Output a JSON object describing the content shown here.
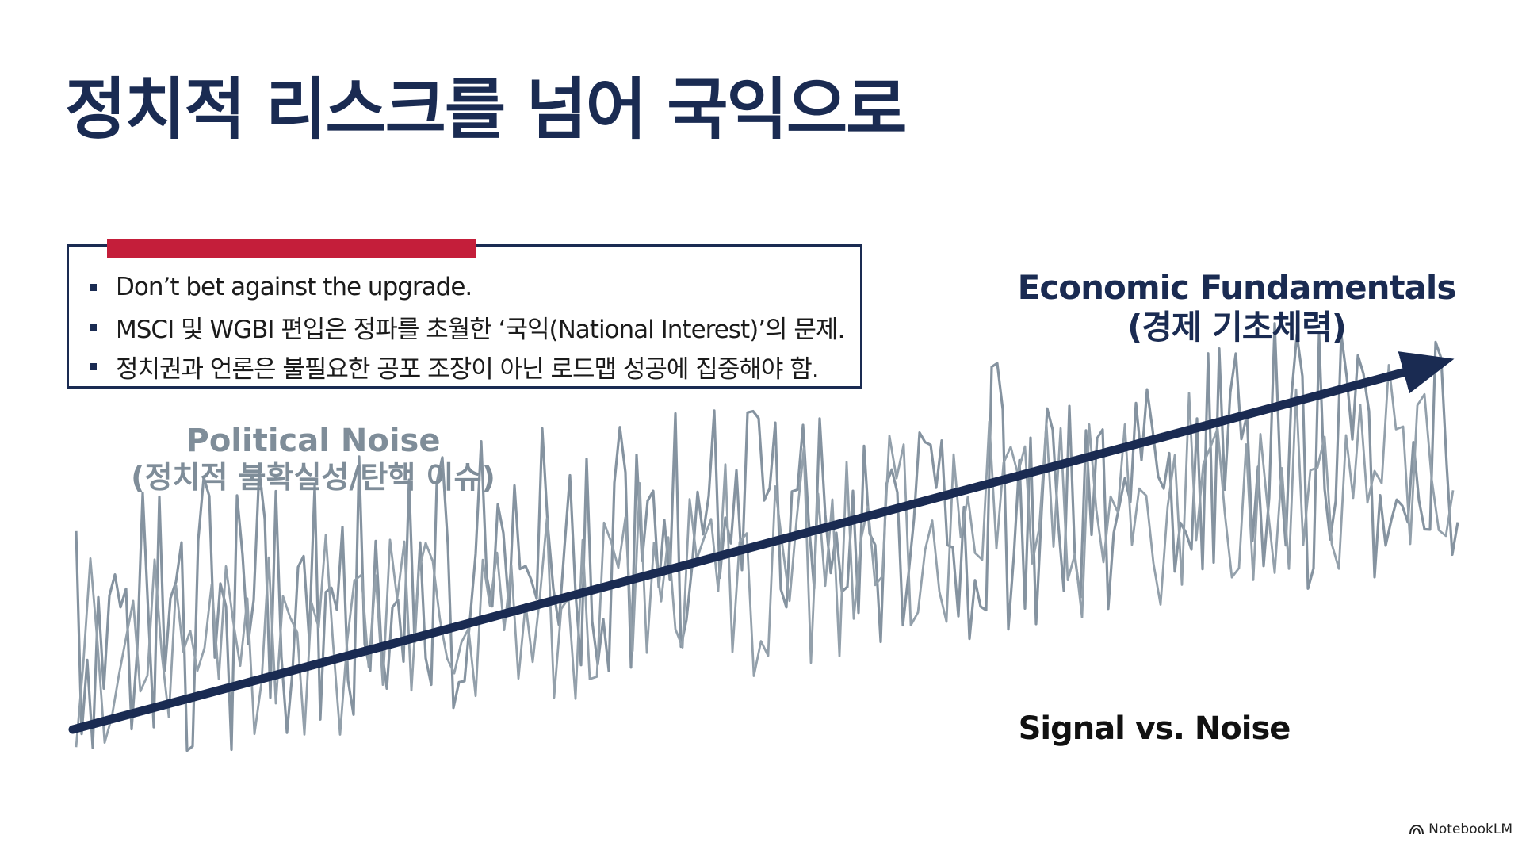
{
  "title": "정치적 리스크를 넘어 국익으로",
  "callout": {
    "bullets": [
      "Don’t bet against the upgrade.",
      "MSCI 및 WGBI 편입은 정파를 초월한 ‘국익(National Interest)’의 문제.",
      "정치권과 언론은 불필요한 공포 조장이 아닌 로드맵 성공에 집중해야 함."
    ]
  },
  "diagram": {
    "noise_label": "Political Noise",
    "noise_sublabel": "(정치적 불확실성/탄핵 이슈)",
    "fundamentals_label": "Economic Fundamentals",
    "fundamentals_sublabel": "(경제 기초체력)",
    "signal_label": "Signal vs. Noise"
  },
  "brand": "NotebookLM",
  "colors": {
    "navy": "#1a2b52",
    "accent_red": "#c41e3a",
    "noise_gray": "#7f8d99"
  },
  "icons": [
    "notebooklm-logo-icon"
  ]
}
